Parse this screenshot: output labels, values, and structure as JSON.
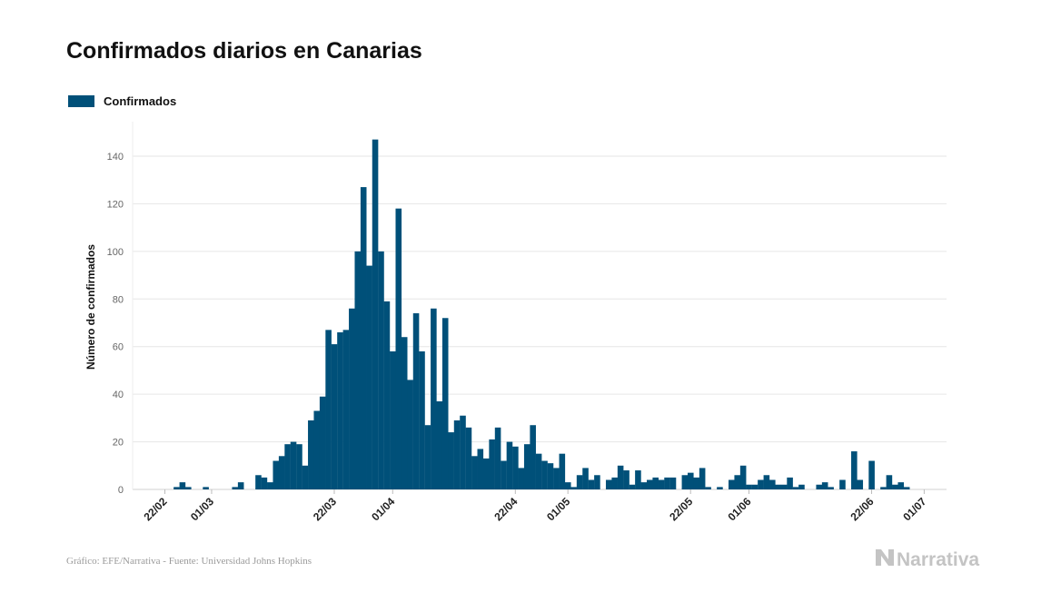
{
  "title": "Confirmados diarios en Canarias",
  "legend": {
    "label": "Confirmados"
  },
  "footer": {
    "credit": "Gráfico: EFE/Narrativa - Fuente: Universidad Johns Hopkins"
  },
  "brand": {
    "name": "Narrativa",
    "icon": "narrativa-logo-icon"
  },
  "colors": {
    "bar": "#005079",
    "grid": "#e6e6e6",
    "tick": "#666666",
    "footer": "#9a9a9a",
    "brand": "#c4c4c4"
  },
  "chart_data": {
    "type": "bar",
    "title": "Confirmados diarios en Canarias",
    "ylabel": "Número de confirmados",
    "xlabel": "",
    "ylim": [
      0,
      150
    ],
    "yticks": [
      0,
      20,
      40,
      60,
      80,
      100,
      120,
      140
    ],
    "grid": true,
    "legend_position": "top-left",
    "start_date": "2020-02-19",
    "xticks": [
      {
        "label": "22/02",
        "date": "2020-02-22"
      },
      {
        "label": "01/03",
        "date": "2020-03-01"
      },
      {
        "label": "22/03",
        "date": "2020-03-22"
      },
      {
        "label": "01/04",
        "date": "2020-04-01"
      },
      {
        "label": "22/04",
        "date": "2020-04-22"
      },
      {
        "label": "01/05",
        "date": "2020-05-01"
      },
      {
        "label": "22/05",
        "date": "2020-05-22"
      },
      {
        "label": "01/06",
        "date": "2020-06-01"
      },
      {
        "label": "22/06",
        "date": "2020-06-22"
      },
      {
        "label": "01/07",
        "date": "2020-07-01"
      }
    ],
    "series": [
      {
        "name": "Confirmados",
        "values": [
          0,
          0,
          0,
          0,
          0,
          1,
          3,
          1,
          0,
          0,
          1,
          0,
          0,
          0,
          0,
          1,
          3,
          0,
          0,
          6,
          5,
          3,
          12,
          14,
          19,
          20,
          19,
          10,
          29,
          33,
          39,
          67,
          61,
          66,
          67,
          76,
          100,
          127,
          94,
          147,
          100,
          79,
          58,
          118,
          64,
          46,
          74,
          58,
          27,
          76,
          37,
          72,
          24,
          29,
          31,
          26,
          14,
          17,
          13,
          21,
          26,
          12,
          20,
          18,
          9,
          19,
          27,
          15,
          12,
          11,
          9,
          15,
          3,
          1,
          6,
          9,
          4,
          6,
          0,
          4,
          5,
          10,
          8,
          2,
          8,
          3,
          4,
          5,
          4,
          5,
          5,
          0,
          6,
          7,
          5,
          9,
          1,
          0,
          1,
          0,
          4,
          6,
          10,
          2,
          2,
          4,
          6,
          4,
          2,
          2,
          5,
          1,
          2,
          0,
          0,
          2,
          3,
          1,
          0,
          4,
          0,
          16,
          4,
          0,
          12,
          0,
          1,
          6,
          2,
          3,
          1,
          0,
          0,
          0,
          0,
          0
        ]
      }
    ]
  }
}
